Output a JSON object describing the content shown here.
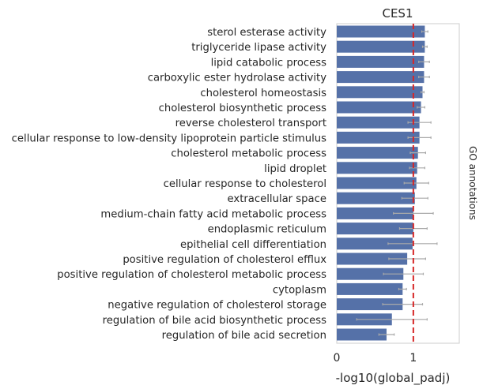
{
  "chart_data": {
    "type": "bar",
    "orientation": "horizontal",
    "title": "CES1",
    "xlabel": "-log10(global_padj)",
    "right_label": "GO annotations",
    "xlim": [
      0,
      1.6
    ],
    "xticks": [
      0,
      1
    ],
    "threshold": 1,
    "grid": false,
    "bar_color": "#5571a8",
    "error_color": "#a9a9a9",
    "threshold_color": "#d62728",
    "categories": [
      "sterol esterase activity",
      "triglyceride lipase activity",
      "lipid catabolic process",
      "carboxylic ester hydrolase activity",
      "cholesterol homeostasis",
      "cholesterol biosynthetic process",
      "reverse cholesterol transport",
      "cellular response to low-density lipoprotein particle stimulus",
      "cholesterol metabolic process",
      "lipid droplet",
      "cellular response to cholesterol",
      "extracellular space",
      "medium-chain fatty acid metabolic process",
      "endoplasmic reticulum",
      "epithelial cell differentiation",
      "positive regulation of cholesterol efflux",
      "positive regulation of cholesterol metabolic process",
      "cytoplasm",
      "negative regulation of cholesterol storage",
      "regulation of bile acid biosynthetic process",
      "regulation of bile acid secretion"
    ],
    "values": [
      1.15,
      1.15,
      1.14,
      1.14,
      1.12,
      1.1,
      1.08,
      1.08,
      1.06,
      1.05,
      1.04,
      1.02,
      1.0,
      1.0,
      0.99,
      0.92,
      0.87,
      0.86,
      0.86,
      0.72,
      0.65
    ],
    "error": [
      0.04,
      0.03,
      0.07,
      0.07,
      0.02,
      0.05,
      0.15,
      0.15,
      0.1,
      0.1,
      0.16,
      0.17,
      0.26,
      0.18,
      0.32,
      0.24,
      0.26,
      0.05,
      0.26,
      0.46,
      0.1
    ]
  }
}
